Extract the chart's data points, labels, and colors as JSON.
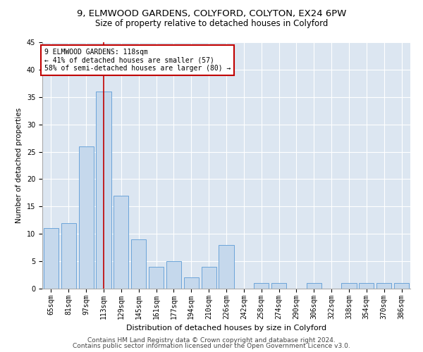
{
  "title1": "9, ELMWOOD GARDENS, COLYFORD, COLYTON, EX24 6PW",
  "title2": "Size of property relative to detached houses in Colyford",
  "xlabel": "Distribution of detached houses by size in Colyford",
  "ylabel": "Number of detached properties",
  "categories": [
    "65sqm",
    "81sqm",
    "97sqm",
    "113sqm",
    "129sqm",
    "145sqm",
    "161sqm",
    "177sqm",
    "194sqm",
    "210sqm",
    "226sqm",
    "242sqm",
    "258sqm",
    "274sqm",
    "290sqm",
    "306sqm",
    "322sqm",
    "338sqm",
    "354sqm",
    "370sqm",
    "386sqm"
  ],
  "values": [
    11,
    12,
    26,
    36,
    17,
    9,
    4,
    5,
    2,
    4,
    8,
    0,
    1,
    1,
    0,
    1,
    0,
    1,
    1,
    1,
    1
  ],
  "highlight_index": 3,
  "highlight_color": "#c00000",
  "bar_color": "#c5d8ec",
  "bar_edge_color": "#5b9bd5",
  "bg_color": "#dce6f1",
  "annotation_text": "9 ELMWOOD GARDENS: 118sqm\n← 41% of detached houses are smaller (57)\n58% of semi-detached houses are larger (80) →",
  "annotation_box_color": "#ffffff",
  "annotation_box_edge": "#c00000",
  "footer1": "Contains HM Land Registry data © Crown copyright and database right 2024.",
  "footer2": "Contains public sector information licensed under the Open Government Licence v3.0.",
  "ylim": [
    0,
    45
  ],
  "title1_fontsize": 9.5,
  "title2_fontsize": 8.5,
  "xlabel_fontsize": 8,
  "ylabel_fontsize": 7.5,
  "tick_fontsize": 7,
  "annotation_fontsize": 7,
  "footer_fontsize": 6.5
}
